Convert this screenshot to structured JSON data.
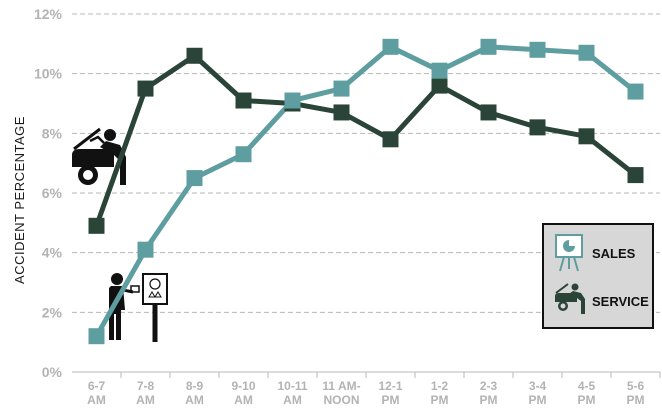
{
  "chart_data": {
    "type": "line",
    "ylabel": "ACCIDENT PERCENTAGE",
    "ylim": [
      0,
      12
    ],
    "yticks": [
      "0%",
      "2%",
      "4%",
      "6%",
      "8%",
      "10%",
      "12%"
    ],
    "categories": [
      "6-7 AM",
      "7-8 AM",
      "8-9 AM",
      "9-10 AM",
      "10-11 AM",
      "11 AM-NOON",
      "12-1 PM",
      "1-2 PM",
      "2-3 PM",
      "3-4 PM",
      "4-5 PM",
      "5-6 PM"
    ],
    "category_lines": [
      [
        "6-7",
        "AM"
      ],
      [
        "7-8",
        "AM"
      ],
      [
        "8-9",
        "AM"
      ],
      [
        "9-10",
        "AM"
      ],
      [
        "10-11",
        "AM"
      ],
      [
        "11 AM-",
        "NOON"
      ],
      [
        "12-1",
        "PM"
      ],
      [
        "1-2",
        "PM"
      ],
      [
        "2-3",
        "PM"
      ],
      [
        "3-4",
        "PM"
      ],
      [
        "4-5",
        "PM"
      ],
      [
        "5-6",
        "PM"
      ]
    ],
    "series": [
      {
        "name": "SALES",
        "color": "#5f9ea0",
        "values": [
          1.2,
          4.1,
          6.5,
          7.3,
          9.1,
          9.5,
          10.9,
          10.1,
          10.9,
          10.8,
          10.7,
          9.4
        ]
      },
      {
        "name": "SERVICE",
        "color": "#2a4437",
        "values": [
          4.9,
          9.5,
          10.6,
          9.1,
          9.0,
          8.7,
          7.8,
          9.6,
          8.7,
          8.2,
          7.9,
          6.6
        ]
      }
    ],
    "grid": true,
    "legend": {
      "position": "bottom-right",
      "items": [
        {
          "label": "SALES",
          "icon": "presentation-easel-icon"
        },
        {
          "label": "SERVICE",
          "icon": "mechanic-car-icon"
        }
      ]
    }
  },
  "icons": {
    "service_illustration": "mechanic-car-icon",
    "sales_illustration": "presenter-easel-icon"
  },
  "colors": {
    "grid": "#b8b8b8",
    "tick": "#b3b3b3",
    "sales": "#5f9ea0",
    "service": "#2a4437"
  }
}
